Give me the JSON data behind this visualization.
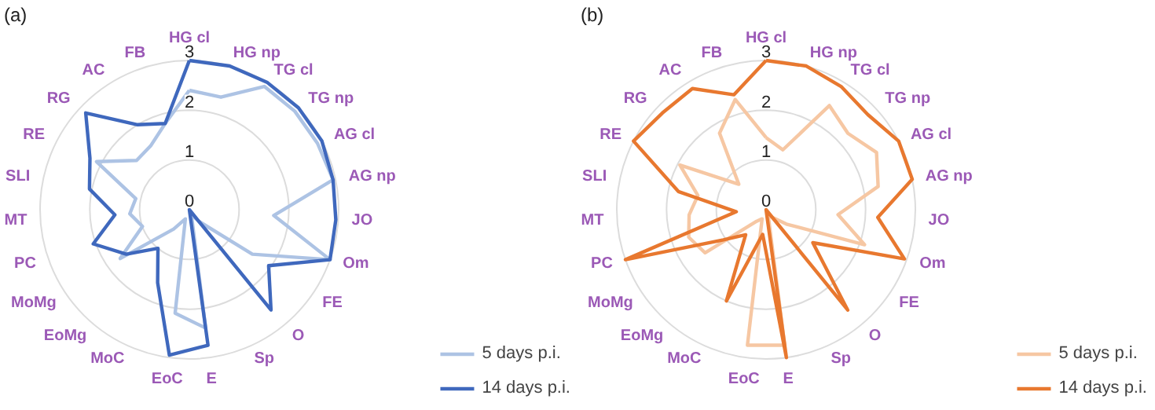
{
  "chart_data": [
    {
      "type": "radar",
      "title": "(a)",
      "categories": [
        "HG cl",
        "HG np",
        "TG cl",
        "TG np",
        "AG cl",
        "AG np",
        "JO",
        "Om",
        "FE",
        "O",
        "Sp",
        "E",
        "EoC",
        "MoC",
        "EoMg",
        "MoMg",
        "PC",
        "MT",
        "SLI",
        "RE",
        "RG",
        "AC",
        "FB"
      ],
      "ylim": [
        0,
        3
      ],
      "yticks": [
        0,
        1,
        2,
        3
      ],
      "legend": "bottom right",
      "series": [
        {
          "name": "5 days p.i.",
          "color": "#adc3e4",
          "values": [
            2.4,
            2.35,
            2.9,
            2.9,
            2.9,
            2.95,
            1.7,
            3.0,
            1.55,
            0.3,
            0.1,
            2.4,
            2.1,
            0.2,
            0.5,
            1.7,
            1.0,
            1.2,
            1.1,
            2.1,
            1.45,
            1.5,
            1.8
          ]
        },
        {
          "name": "14 days p.i.",
          "color": "#3f68bd",
          "values": [
            3.0,
            3.0,
            3.0,
            3.0,
            3.0,
            2.95,
            2.95,
            3.0,
            1.95,
            2.6,
            0,
            2.75,
            2.95,
            1.6,
            1.0,
            1.55,
            2.05,
            1.5,
            2.05,
            2.25,
            2.85,
            2.0,
            1.8
          ]
        }
      ]
    },
    {
      "type": "radar",
      "title": "(b)",
      "categories": [
        "HG cl",
        "HG np",
        "TG cl",
        "TG np",
        "AG cl",
        "AG np",
        "JO",
        "Om",
        "FE",
        "O",
        "Sp",
        "E",
        "EoC",
        "MoC",
        "EoMg",
        "MoMg",
        "PC",
        "MT",
        "SLI",
        "RE",
        "RG",
        "AC",
        "FB"
      ],
      "ylim": [
        0,
        3
      ],
      "yticks": [
        0,
        1,
        2,
        3
      ],
      "legend": "bottom right",
      "series": [
        {
          "name": "5 days p.i.",
          "color": "#f6c7a3",
          "values": [
            1.45,
            1.25,
            2.45,
            2.25,
            2.5,
            2.3,
            1.45,
            2.1,
            0.5,
            0.2,
            0.1,
            2.75,
            2.75,
            0.2,
            0.3,
            1.5,
            1.65,
            1.55,
            1.4,
            1.95,
            0.75,
            1.8,
            2.3
          ]
        },
        {
          "name": "14 days p.i.",
          "color": "#e8782f",
          "values": [
            3.0,
            3.0,
            2.9,
            2.8,
            3.0,
            3.0,
            2.25,
            2.95,
            1.15,
            2.6,
            0,
            3.0,
            0.5,
            2.0,
            0.65,
            1.05,
            3.0,
            0.6,
            1.8,
            3.0,
            2.85,
            2.85,
            2.4
          ]
        }
      ]
    }
  ]
}
